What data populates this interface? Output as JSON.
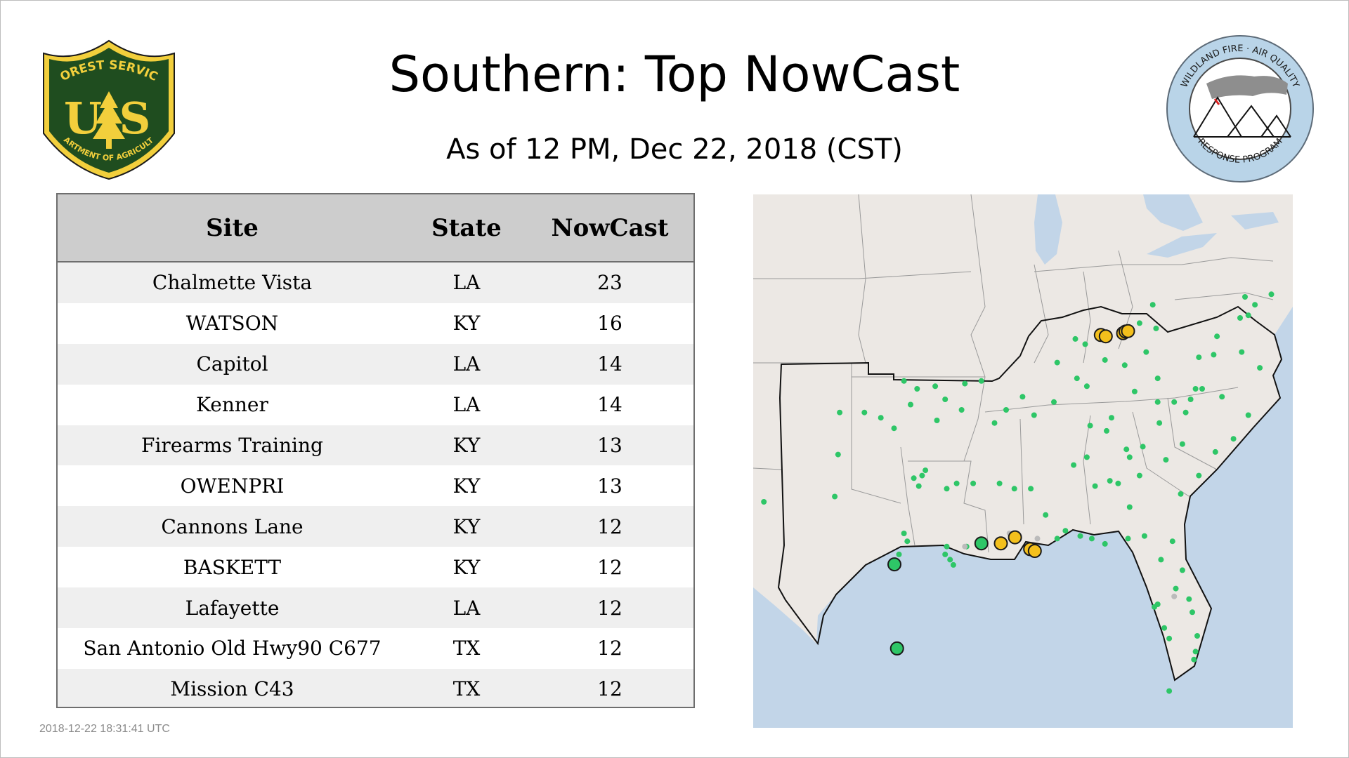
{
  "page": {
    "title": "Southern: Top NowCast",
    "subtitle": "As of 12 PM, Dec 22, 2018 (CST)",
    "timestamp": "2018-12-22 18:31:41 UTC"
  },
  "logos": {
    "left": {
      "text_top": "FOREST SERVICE",
      "text_mid": "U S",
      "text_bottom": "DEPARTMENT OF AGRICULTURE",
      "color_fill": "#1f4d1f",
      "color_accent": "#f2cf3c"
    },
    "right": {
      "text_top": "WILDLAND FIRE · AIR QUALITY",
      "text_bottom": "RESPONSE PROGRAM",
      "color_ring": "#b9d4e8"
    }
  },
  "table": {
    "headers": [
      "Site",
      "State",
      "NowCast"
    ],
    "rows": [
      {
        "site": "Chalmette Vista",
        "state": "LA",
        "nowcast": "23"
      },
      {
        "site": "WATSON",
        "state": "KY",
        "nowcast": "16"
      },
      {
        "site": "Capitol",
        "state": "LA",
        "nowcast": "14"
      },
      {
        "site": "Kenner",
        "state": "LA",
        "nowcast": "14"
      },
      {
        "site": "Firearms Training",
        "state": "KY",
        "nowcast": "13"
      },
      {
        "site": "OWENPRI",
        "state": "KY",
        "nowcast": "13"
      },
      {
        "site": "Cannons Lane",
        "state": "KY",
        "nowcast": "12"
      },
      {
        "site": "BASKETT",
        "state": "KY",
        "nowcast": "12"
      },
      {
        "site": "Lafayette",
        "state": "LA",
        "nowcast": "12"
      },
      {
        "site": "San Antonio Old Hwy90 C677",
        "state": "TX",
        "nowcast": "12"
      },
      {
        "site": "Mission C43",
        "state": "TX",
        "nowcast": "12"
      }
    ]
  },
  "map": {
    "colors": {
      "land": "#ece8e4",
      "water": "#c2d5e8",
      "border": "#9a9a9a",
      "region_outline": "#111111",
      "green": "#2ec667",
      "yellow": "#f4c01c",
      "gray": "#bbbbbb",
      "marker_stroke": "#1a1a1a"
    },
    "highlight_markers": [
      {
        "lon": -98.48,
        "lat": 29.42,
        "color": "green"
      },
      {
        "lon": -98.32,
        "lat": 26.22,
        "color": "green"
      },
      {
        "lon": -93.2,
        "lat": 30.22,
        "color": "green"
      },
      {
        "lon": -92.02,
        "lat": 30.22,
        "color": "yellow"
      },
      {
        "lon": -91.16,
        "lat": 30.45,
        "color": "yellow"
      },
      {
        "lon": -90.24,
        "lat": 30.0,
        "color": "yellow"
      },
      {
        "lon": -89.96,
        "lat": 29.93,
        "color": "yellow"
      },
      {
        "lon": -85.95,
        "lat": 38.15,
        "color": "yellow"
      },
      {
        "lon": -85.65,
        "lat": 38.1,
        "color": "yellow"
      },
      {
        "lon": -84.6,
        "lat": 38.22,
        "color": "yellow"
      },
      {
        "lon": -84.45,
        "lat": 38.28,
        "color": "yellow"
      },
      {
        "lon": -84.3,
        "lat": 38.3,
        "color": "yellow"
      }
    ],
    "monitor_markers": [
      [
        -97.5,
        35.5
      ],
      [
        -97.1,
        36.1
      ],
      [
        -96.0,
        36.2
      ],
      [
        -98.5,
        34.6
      ],
      [
        -99.3,
        35.0
      ],
      [
        -95.4,
        35.7
      ],
      [
        -94.4,
        35.3
      ],
      [
        -97.9,
        36.4
      ],
      [
        -100.3,
        35.2
      ],
      [
        -101.8,
        35.2
      ],
      [
        -95.9,
        34.9
      ],
      [
        -93.2,
        36.4
      ],
      [
        -92.4,
        34.8
      ],
      [
        -91.7,
        35.3
      ],
      [
        -90.7,
        35.8
      ],
      [
        -94.2,
        36.3
      ],
      [
        -96.8,
        32.8
      ],
      [
        -97.3,
        32.7
      ],
      [
        -96.6,
        33.0
      ],
      [
        -97.0,
        32.4
      ],
      [
        -95.3,
        32.3
      ],
      [
        -94.7,
        32.5
      ],
      [
        -97.7,
        30.3
      ],
      [
        -97.9,
        30.6
      ],
      [
        -98.2,
        29.8
      ],
      [
        -95.4,
        29.8
      ],
      [
        -95.1,
        29.6
      ],
      [
        -94.9,
        29.4
      ],
      [
        -95.3,
        30.1
      ],
      [
        -94.1,
        30.1
      ],
      [
        -101.9,
        33.6
      ],
      [
        -102.1,
        32.0
      ],
      [
        -106.4,
        31.8
      ],
      [
        -92.1,
        32.5
      ],
      [
        -93.7,
        32.5
      ],
      [
        -91.2,
        32.3
      ],
      [
        -90.2,
        32.3
      ],
      [
        -89.3,
        31.3
      ],
      [
        -88.6,
        30.4
      ],
      [
        -88.1,
        30.7
      ],
      [
        -87.2,
        30.5
      ],
      [
        -86.5,
        30.4
      ],
      [
        -85.7,
        30.2
      ],
      [
        -84.3,
        30.4
      ],
      [
        -83.3,
        30.5
      ],
      [
        -90.0,
        35.1
      ],
      [
        -88.8,
        35.6
      ],
      [
        -86.8,
        36.2
      ],
      [
        -85.3,
        35.0
      ],
      [
        -83.9,
        36.0
      ],
      [
        -82.5,
        36.5
      ],
      [
        -87.4,
        36.5
      ],
      [
        -88.6,
        37.1
      ],
      [
        -86.9,
        37.8
      ],
      [
        -85.7,
        37.2
      ],
      [
        -84.5,
        37.0
      ],
      [
        -83.2,
        37.5
      ],
      [
        -82.6,
        38.4
      ],
      [
        -83.6,
        38.6
      ],
      [
        -82.8,
        39.3
      ],
      [
        -87.5,
        38.0
      ],
      [
        -86.8,
        33.5
      ],
      [
        -86.3,
        32.4
      ],
      [
        -85.4,
        32.6
      ],
      [
        -87.6,
        33.2
      ],
      [
        -85.6,
        34.5
      ],
      [
        -86.6,
        34.7
      ],
      [
        -84.4,
        33.8
      ],
      [
        -84.2,
        33.5
      ],
      [
        -83.4,
        33.9
      ],
      [
        -82.0,
        33.4
      ],
      [
        -83.6,
        32.8
      ],
      [
        -81.1,
        32.1
      ],
      [
        -84.9,
        32.5
      ],
      [
        -84.2,
        31.6
      ],
      [
        -81.0,
        34.0
      ],
      [
        -80.0,
        32.8
      ],
      [
        -82.4,
        34.8
      ],
      [
        -79.0,
        33.7
      ],
      [
        -80.8,
        35.2
      ],
      [
        -80.2,
        36.1
      ],
      [
        -79.8,
        36.1
      ],
      [
        -78.6,
        35.8
      ],
      [
        -77.9,
        34.2
      ],
      [
        -77.0,
        35.1
      ],
      [
        -82.5,
        35.6
      ],
      [
        -81.5,
        35.6
      ],
      [
        -80.5,
        35.7
      ],
      [
        -77.4,
        37.5
      ],
      [
        -76.3,
        36.9
      ],
      [
        -77.5,
        38.8
      ],
      [
        -78.9,
        38.1
      ],
      [
        -80.0,
        37.3
      ],
      [
        -79.1,
        37.4
      ],
      [
        -76.6,
        39.3
      ],
      [
        -77.0,
        38.9
      ],
      [
        -75.6,
        39.7
      ],
      [
        -77.2,
        39.6
      ],
      [
        -81.6,
        30.3
      ],
      [
        -81.4,
        28.5
      ],
      [
        -82.5,
        27.9
      ],
      [
        -82.7,
        27.8
      ],
      [
        -81.8,
        26.6
      ],
      [
        -80.2,
        26.1
      ],
      [
        -80.1,
        26.7
      ],
      [
        -80.3,
        25.8
      ],
      [
        -81.0,
        29.2
      ],
      [
        -82.3,
        29.6
      ],
      [
        -80.6,
        28.1
      ],
      [
        -82.1,
        27.0
      ],
      [
        -80.4,
        27.6
      ],
      [
        -81.8,
        24.6
      ]
    ],
    "gray_markers": [
      [
        -94.2,
        30.1
      ],
      [
        -91.5,
        30.6
      ],
      [
        -89.8,
        30.4
      ],
      [
        -81.5,
        28.2
      ]
    ]
  }
}
